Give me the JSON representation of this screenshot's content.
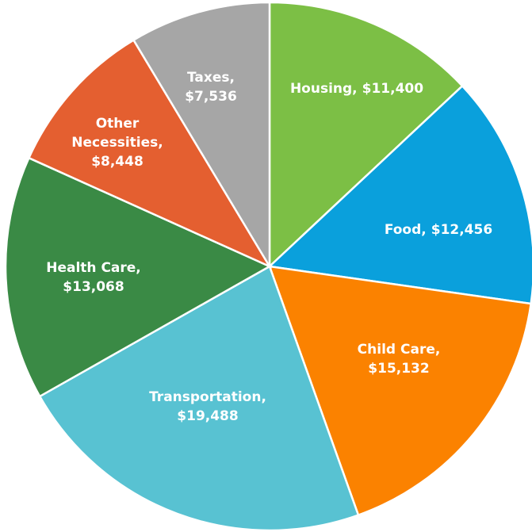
{
  "chart_data": {
    "type": "pie",
    "categories": [
      "Housing,",
      "Food,",
      "Child Care,",
      "Transportation,",
      "Health Care,",
      "Other Necessities,",
      "Taxes,"
    ],
    "values": [
      11400,
      12456,
      15132,
      19488,
      13068,
      8448,
      7536
    ],
    "value_labels": [
      "$11,400",
      "$12,456",
      "$15,132",
      "$19,488",
      "$13,068",
      "$8,448",
      "$7,536"
    ],
    "colors": [
      "#7cbf45",
      "#0aa0dc",
      "#fb8200",
      "#58c2d2",
      "#3a8a45",
      "#e45f30",
      "#a6a6a6"
    ]
  }
}
